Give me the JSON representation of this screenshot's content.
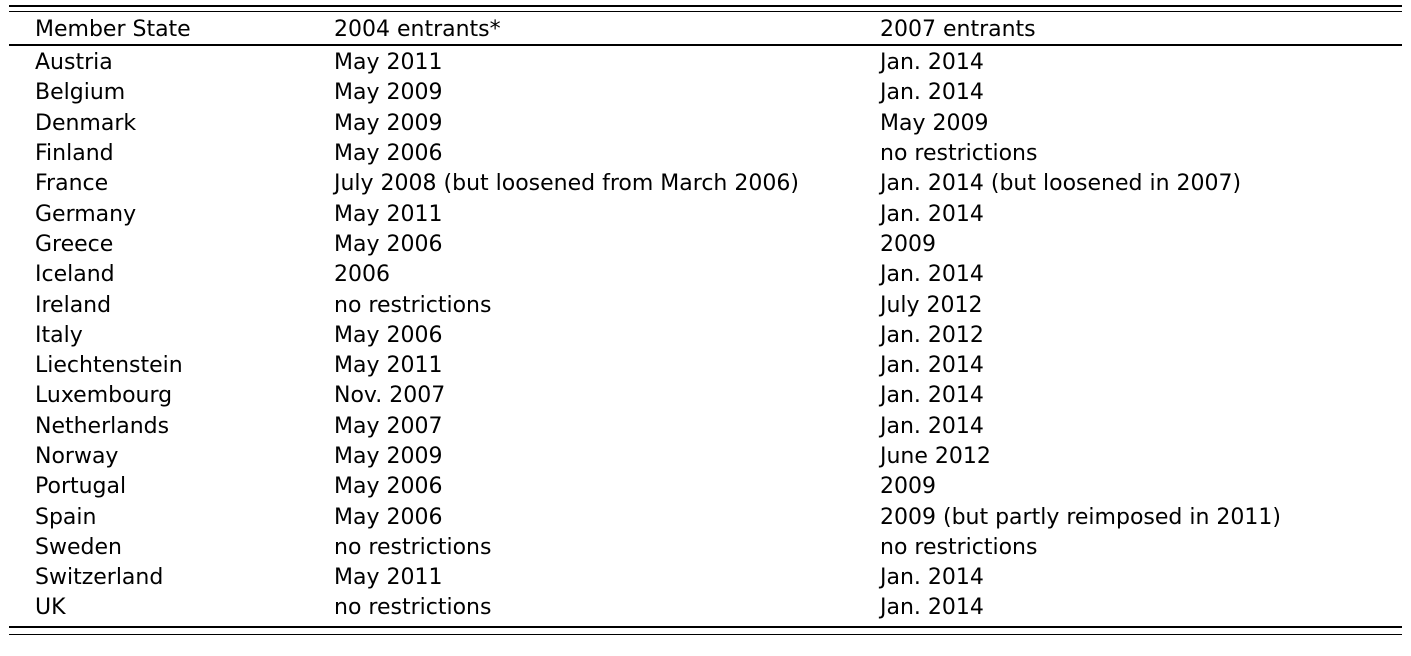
{
  "table": {
    "headers": {
      "member_state": "Member State",
      "entrants_2004": "2004 entrants*",
      "entrants_2007": "2007 entrants"
    },
    "rows": [
      {
        "state": "Austria",
        "e2004": "May 2011",
        "e2007": "Jan. 2014"
      },
      {
        "state": "Belgium",
        "e2004": "May 2009",
        "e2007": "Jan. 2014"
      },
      {
        "state": "Denmark",
        "e2004": "May 2009",
        "e2007": "May 2009"
      },
      {
        "state": "Finland",
        "e2004": "May 2006",
        "e2007": "no restrictions"
      },
      {
        "state": "France",
        "e2004": "July 2008 (but loosened from March 2006)",
        "e2007": "Jan. 2014 (but loosened in 2007)"
      },
      {
        "state": "Germany",
        "e2004": "May 2011",
        "e2007": "Jan. 2014"
      },
      {
        "state": "Greece",
        "e2004": "May 2006",
        "e2007": "2009"
      },
      {
        "state": "Iceland",
        "e2004": "2006",
        "e2007": "Jan. 2014"
      },
      {
        "state": "Ireland",
        "e2004": "no restrictions",
        "e2007": "July 2012"
      },
      {
        "state": "Italy",
        "e2004": "May 2006",
        "e2007": "Jan. 2012"
      },
      {
        "state": "Liechtenstein",
        "e2004": "May 2011",
        "e2007": "Jan. 2014"
      },
      {
        "state": "Luxembourg",
        "e2004": "Nov. 2007",
        "e2007": "Jan. 2014"
      },
      {
        "state": "Netherlands",
        "e2004": "May 2007",
        "e2007": "Jan. 2014"
      },
      {
        "state": "Norway",
        "e2004": "May 2009",
        "e2007": "June 2012"
      },
      {
        "state": "Portugal",
        "e2004": "May 2006",
        "e2007": "2009"
      },
      {
        "state": "Spain",
        "e2004": "May 2006",
        "e2007": "2009 (but partly reimposed in 2011)"
      },
      {
        "state": "Sweden",
        "e2004": "no restrictions",
        "e2007": "no restrictions"
      },
      {
        "state": "Switzerland",
        "e2004": "May 2011",
        "e2007": "Jan. 2014"
      },
      {
        "state": "UK",
        "e2004": "no restrictions",
        "e2007": "Jan. 2014"
      }
    ]
  }
}
